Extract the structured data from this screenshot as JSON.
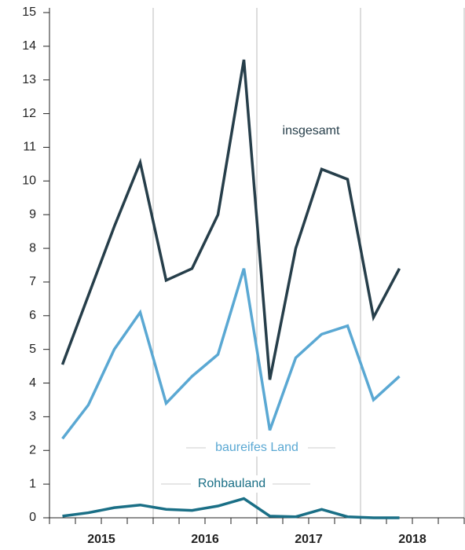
{
  "chart_data": {
    "type": "line",
    "categories": [
      null,
      null,
      null,
      null,
      null,
      null,
      null,
      null,
      null,
      null,
      null,
      null,
      null,
      null,
      null,
      null
    ],
    "x_groups": [
      "2015",
      "2016",
      "2017",
      "2018"
    ],
    "series": [
      {
        "name": "insgesamt",
        "color": "#263e4a",
        "values": [
          4.55,
          6.6,
          8.65,
          10.55,
          7.05,
          7.4,
          9.0,
          13.6,
          4.1,
          8.0,
          10.35,
          10.05,
          5.95,
          7.4,
          null,
          null
        ]
      },
      {
        "name": "baureifes Land",
        "color": "#5aa8d3",
        "values": [
          2.35,
          3.35,
          5.0,
          6.1,
          3.4,
          4.2,
          4.85,
          7.4,
          2.6,
          4.75,
          5.45,
          5.7,
          3.5,
          4.2,
          null,
          null
        ]
      },
      {
        "name": "Rohbauland",
        "color": "#1a6f86",
        "values": [
          0.05,
          0.15,
          0.3,
          0.38,
          0.25,
          0.22,
          0.35,
          0.57,
          0.05,
          0.03,
          0.25,
          0.03,
          0.0,
          0.0,
          null,
          null
        ]
      }
    ],
    "ylim": [
      0,
      15
    ],
    "yticks": [
      0,
      1,
      2,
      3,
      4,
      5,
      6,
      7,
      8,
      9,
      10,
      11,
      12,
      13,
      14,
      15
    ],
    "grid": false
  }
}
